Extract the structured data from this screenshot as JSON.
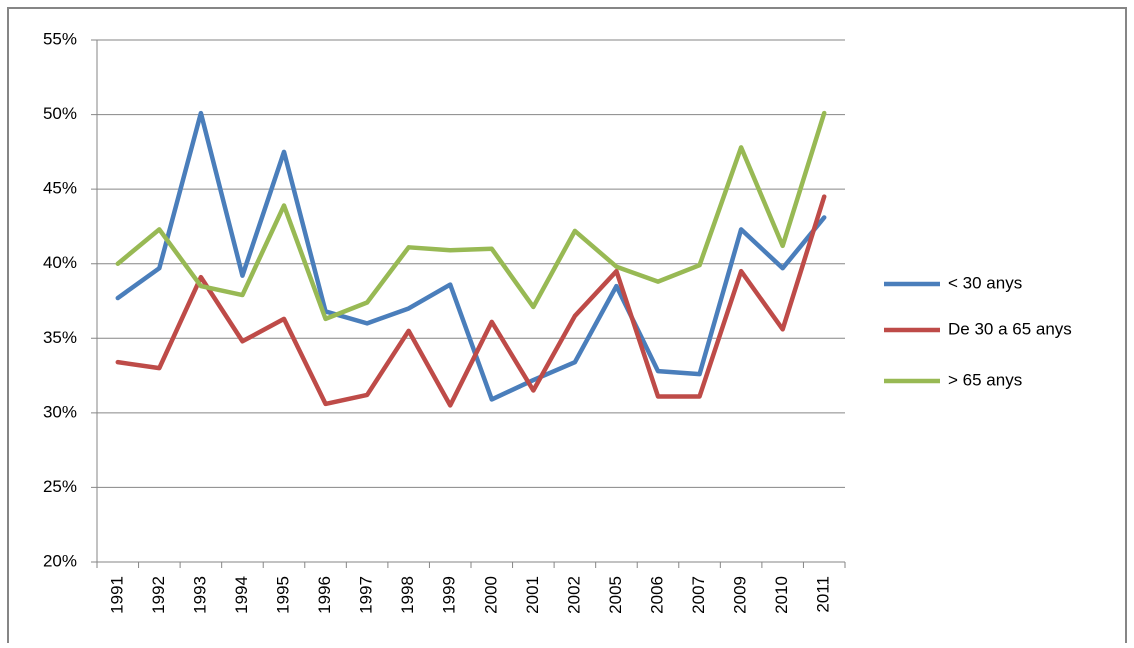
{
  "chart_data": {
    "type": "line",
    "categories": [
      "1991",
      "1992",
      "1993",
      "1994",
      "1995",
      "1996",
      "1997",
      "1998",
      "1999",
      "2000",
      "2001",
      "2002",
      "2005",
      "2006",
      "2007",
      "2009",
      "2010",
      "2011"
    ],
    "series": [
      {
        "name": "< 30 anys",
        "color": "#4a7ebb",
        "values": [
          37.7,
          39.7,
          50.1,
          39.2,
          47.5,
          36.8,
          36.0,
          37.0,
          38.6,
          30.9,
          32.2,
          33.4,
          38.5,
          32.8,
          32.6,
          42.3,
          39.7,
          43.1
        ]
      },
      {
        "name": "De 30 a 65 anys",
        "color": "#be4b48",
        "values": [
          33.4,
          33.0,
          39.1,
          34.8,
          36.3,
          30.6,
          31.2,
          35.5,
          30.5,
          36.1,
          31.5,
          36.5,
          39.5,
          31.1,
          31.1,
          39.5,
          35.6,
          44.5
        ]
      },
      {
        "name": "> 65 anys",
        "color": "#98b954",
        "values": [
          40.0,
          42.3,
          38.5,
          37.9,
          43.9,
          36.3,
          37.4,
          41.1,
          40.9,
          41.0,
          37.1,
          42.2,
          39.8,
          38.8,
          39.9,
          47.8,
          41.2,
          50.1
        ]
      }
    ],
    "ylim": [
      20,
      55
    ],
    "yticks": [
      {
        "value": 20,
        "label": "20%"
      },
      {
        "value": 25,
        "label": "25%"
      },
      {
        "value": 30,
        "label": "30%"
      },
      {
        "value": 35,
        "label": "35%"
      },
      {
        "value": 40,
        "label": "40%"
      },
      {
        "value": 45,
        "label": "45%"
      },
      {
        "value": 50,
        "label": "50%"
      },
      {
        "value": 55,
        "label": "55%"
      }
    ],
    "grid": true,
    "legend": "right"
  }
}
